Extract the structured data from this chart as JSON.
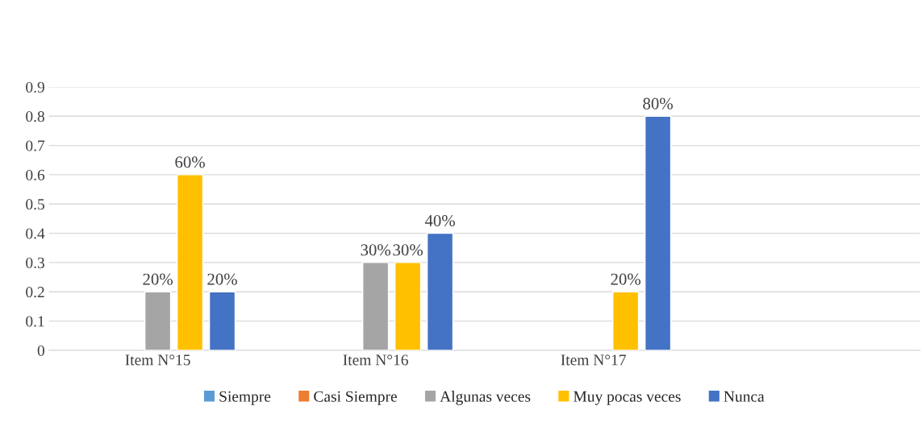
{
  "chart_data": {
    "type": "bar",
    "categories": [
      "Item N°15",
      "Item N°16",
      "Item N°17",
      null
    ],
    "series": [
      {
        "name": "Siempre",
        "color": "#5b9bd5",
        "values": [
          null,
          null,
          null,
          null
        ]
      },
      {
        "name": "Casi Siempre",
        "color": "#ed7d31",
        "values": [
          null,
          null,
          null,
          null
        ]
      },
      {
        "name": "Algunas veces",
        "color": "#a5a5a5",
        "values": [
          0.2,
          0.3,
          null,
          null
        ],
        "value_labels": [
          "20%",
          "30%",
          null,
          null
        ]
      },
      {
        "name": "Muy pocas veces",
        "color": "#ffc000",
        "values": [
          0.6,
          0.3,
          0.2,
          null
        ],
        "value_labels": [
          "60%",
          "30%",
          "20%",
          null
        ]
      },
      {
        "name": "Nunca",
        "color": "#4472c4",
        "values": [
          0.2,
          0.4,
          0.8,
          null
        ],
        "value_labels": [
          "20%",
          "40%",
          "80%",
          null
        ]
      }
    ],
    "ylim": [
      0,
      0.9
    ],
    "yticks": [
      0,
      0.1,
      0.2,
      0.3,
      0.4,
      0.5,
      0.6,
      0.7,
      0.8,
      0.9
    ],
    "grid": "y",
    "legend": "bottom"
  }
}
